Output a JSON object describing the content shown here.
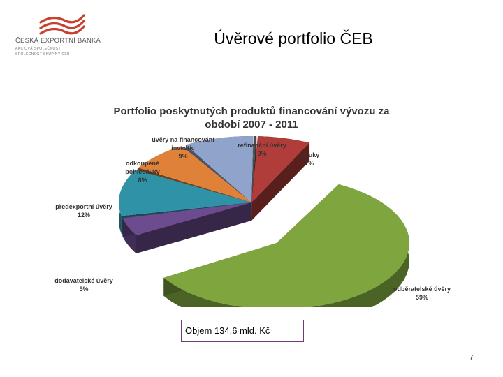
{
  "header": {
    "logo_name": "ČESKÁ EXPORTNÍ BANKA",
    "logo_line1": "AKCIOVÁ SPOLEČNOST",
    "logo_line2": "SPOLEČNOST SKUPINY ČEB",
    "slide_title": "Úvěrové portfolio ČEB"
  },
  "chart_data": {
    "type": "pie",
    "title": "Portfolio poskytnutých produktů financování vývozu za období 2007 - 2011",
    "title_line1": "Portfolio poskytnutých produktů financování vývozu za",
    "title_line2": "období 2007 - 2011",
    "slices": [
      {
        "label": "refinanční úvěry",
        "value": 0,
        "value_label": "0%",
        "color": "#4a4a4a"
      },
      {
        "label": "záruky",
        "value": 7,
        "value_label": "7%",
        "color": "#b13d3a"
      },
      {
        "label": "odběratelské úvěry",
        "value": 59,
        "value_label": "59%",
        "color": "#7fa53f"
      },
      {
        "label": "dodavatelské úvěry",
        "value": 5,
        "value_label": "5%",
        "color": "#6c4c8f"
      },
      {
        "label": "předexportní úvěry",
        "value": 12,
        "value_label": "12%",
        "color": "#2f92a7"
      },
      {
        "label": "odkoupené pohledávky",
        "value": 8,
        "value_label": "8%",
        "color": "#e0813a"
      },
      {
        "label": "úvěry na financování investic",
        "value": 9,
        "value_label": "9%",
        "color": "#8fa3cb"
      }
    ],
    "label_lines": {
      "refinanční úvěry": [
        "refinanční úvěry"
      ],
      "záruky": [
        "záruky"
      ],
      "odběratelské úvěry": [
        "odběratelské úvěry"
      ],
      "dodavatelské úvěry": [
        "dodavatelské úvěry"
      ],
      "předexportní úvěry": [
        "předexportní úvěry"
      ],
      "odkoupené pohledávky": [
        "odkoupené",
        "pohledávky"
      ],
      "úvěry na financování investic": [
        "úvěry na financování",
        "investic"
      ]
    }
  },
  "footer": {
    "volume_text": "Objem 134,6 mld. Kč",
    "page_number": "7"
  }
}
